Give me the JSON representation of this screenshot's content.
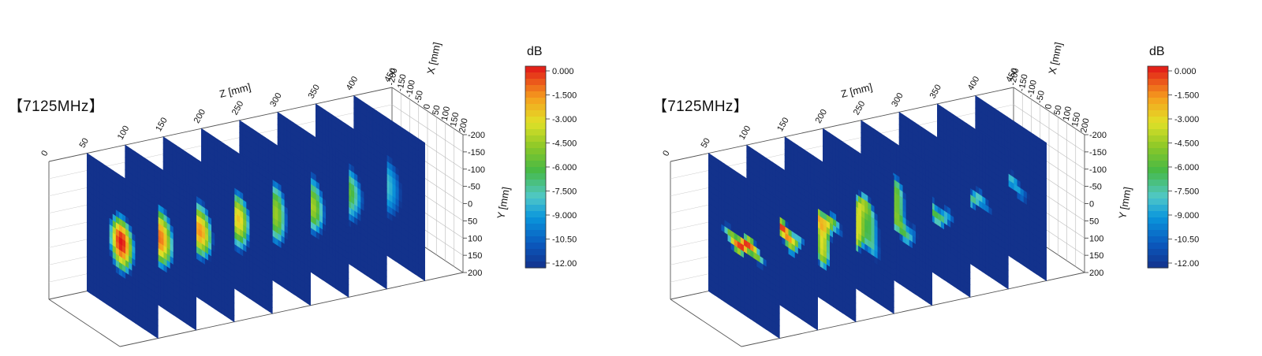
{
  "chart_data": [
    {
      "type": "heatmap",
      "title": "【7125MHz】",
      "subtype": "3d-stacked-slices",
      "z_axis": {
        "label": "Z [mm]",
        "ticks": [
          "0",
          "50",
          "100",
          "150",
          "200",
          "250",
          "300",
          "350",
          "400",
          "450"
        ],
        "range": [
          0,
          450
        ]
      },
      "x_axis": {
        "label": "X [mm]",
        "ticks": [
          "-200",
          "-150",
          "-100",
          "-50",
          "0",
          "50",
          "100",
          "150",
          "200"
        ],
        "range": [
          -200,
          200
        ]
      },
      "y_axis": {
        "label": "Y [mm]",
        "ticks": [
          "-200",
          "-150",
          "-100",
          "-50",
          "0",
          "50",
          "100",
          "150",
          "200"
        ],
        "range": [
          -200,
          200
        ]
      },
      "slices_z": [
        50,
        100,
        150,
        200,
        250,
        300,
        350,
        400
      ],
      "peak_db": [
        0,
        0,
        -1.5,
        -3,
        -4.5,
        -5.5,
        -6.5,
        -7
      ],
      "spread": [
        0.45,
        0.5,
        0.56,
        0.62,
        0.7,
        0.8,
        0.9,
        1.0
      ],
      "pattern": "single-beam",
      "grid": true,
      "colorbar": {
        "label": "dB",
        "ticks": [
          "0.000",
          "-1.500",
          "-3.000",
          "-4.500",
          "-6.000",
          "-7.500",
          "-9.000",
          "-10.50",
          "-12.00"
        ],
        "range": [
          -12,
          0
        ]
      }
    },
    {
      "type": "heatmap",
      "title": "【7125MHz】",
      "subtype": "3d-stacked-slices",
      "z_axis": {
        "label": "Z [mm]",
        "ticks": [
          "0",
          "50",
          "100",
          "150",
          "200",
          "250",
          "300",
          "350",
          "400",
          "450"
        ],
        "range": [
          0,
          450
        ]
      },
      "x_axis": {
        "label": "X [mm]",
        "ticks": [
          "-200",
          "-150",
          "-100",
          "-50",
          "0",
          "50",
          "100",
          "150",
          "200"
        ],
        "range": [
          -200,
          200
        ]
      },
      "y_axis": {
        "label": "Y [mm]",
        "ticks": [
          "-200",
          "-150",
          "-100",
          "-50",
          "0",
          "50",
          "100",
          "150",
          "200"
        ],
        "range": [
          -200,
          200
        ]
      },
      "slices_z": [
        50,
        100,
        150,
        200,
        250,
        300,
        350,
        400
      ],
      "peak_db": [
        0,
        -0.5,
        -2,
        -3.5,
        -5,
        -6,
        -7,
        -8
      ],
      "spread": [
        0.5,
        0.55,
        0.62,
        0.7,
        0.78,
        0.86,
        0.94,
        1.0
      ],
      "pattern": "wide-band",
      "grid": true,
      "colorbar": {
        "label": "dB",
        "ticks": [
          "0.000",
          "-1.500",
          "-3.000",
          "-4.500",
          "-6.000",
          "-7.500",
          "-9.000",
          "-10.50",
          "-12.00"
        ],
        "range": [
          -12,
          0
        ]
      }
    }
  ]
}
